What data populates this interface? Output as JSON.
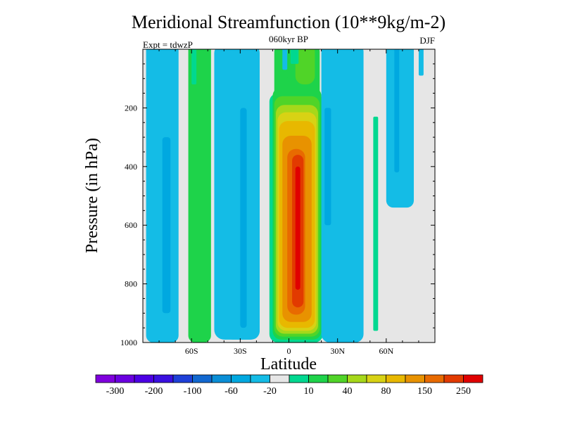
{
  "chart_data": {
    "type": "heatmap",
    "title": "Meridional Streamfunction (10**9kg/m-2)",
    "subtitle_center": "060kyr BP",
    "subtitle_left": "Expt = tdwzP",
    "subtitle_right": "DJF",
    "xlabel": "Latitude",
    "ylabel": "Pressure (in hPa)",
    "x_tick_labels": [
      "60S",
      "30S",
      "0",
      "30N",
      "60N"
    ],
    "x_tick_values": [
      -60,
      -30,
      0,
      30,
      60
    ],
    "y_tick_labels": [
      "200",
      "400",
      "600",
      "800",
      "1000"
    ],
    "y_tick_values": [
      200,
      400,
      600,
      800,
      1000
    ],
    "xlim": [
      -90,
      90
    ],
    "ylim": [
      1000,
      0
    ],
    "y_reversed": true,
    "colorbar": {
      "colors": [
        "#7f00dd",
        "#6a00e0",
        "#4c00e4",
        "#3a10e0",
        "#1e40d8",
        "#1268d0",
        "#0a8ed6",
        "#00a8e0",
        "#14bce6",
        "#e6e6e6",
        "#00d890",
        "#1ed34a",
        "#50d428",
        "#a6d81a",
        "#d8d214",
        "#e8b800",
        "#e89200",
        "#e86a00",
        "#e23a00",
        "#e00000"
      ],
      "tick_labels": [
        "-300",
        "-200",
        "-100",
        "-60",
        "-20",
        "10",
        "40",
        "80",
        "150",
        "250"
      ],
      "levels": [
        -300,
        -250,
        -200,
        -150,
        -100,
        -80,
        -60,
        -40,
        -20,
        -10,
        10,
        20,
        40,
        60,
        80,
        100,
        150,
        200,
        250
      ]
    },
    "features": [
      {
        "name": "southern-polar-cell",
        "level_color": "#14bce6",
        "lat_range": [
          -88,
          -68
        ],
        "p_range": [
          0,
          1000
        ]
      },
      {
        "name": "southern-polar-cell-core",
        "level_color": "#00a8e0",
        "lat_range": [
          -78,
          -73
        ],
        "p_range": [
          300,
          900
        ]
      },
      {
        "name": "southern-ferrel-cell",
        "level_color": "#1ed34a",
        "lat_range": [
          -62,
          -48
        ],
        "p_range": [
          0,
          1000
        ]
      },
      {
        "name": "southern-subtropical-cell",
        "level_color": "#14bce6",
        "lat_range": [
          -40,
          -18
        ],
        "p_range": [
          0,
          1000
        ]
      },
      {
        "name": "southern-subtropical-core",
        "level_color": "#00a8e0",
        "lat_range": [
          -30,
          -26
        ],
        "p_range": [
          200,
          950
        ]
      },
      {
        "name": "hadley-cell",
        "level_color": "#e00000",
        "lat_range": [
          -10,
          20
        ],
        "p_range": [
          0,
          1000
        ],
        "max": 300
      },
      {
        "name": "northern-cell",
        "level_color": "#14bce6",
        "lat_range": [
          20,
          46
        ],
        "p_range": [
          0,
          1000
        ]
      },
      {
        "name": "northern-cell-core",
        "level_color": "#00a8e0",
        "lat_range": [
          22,
          26
        ],
        "p_range": [
          200,
          600
        ]
      },
      {
        "name": "northern-positive-band",
        "level_color": "#00d890",
        "lat_range": [
          52,
          55
        ],
        "p_range": [
          230,
          960
        ]
      },
      {
        "name": "northern-polar-cell",
        "level_color": "#14bce6",
        "lat_range": [
          55,
          86
        ],
        "p_range": [
          0,
          550
        ]
      }
    ]
  }
}
